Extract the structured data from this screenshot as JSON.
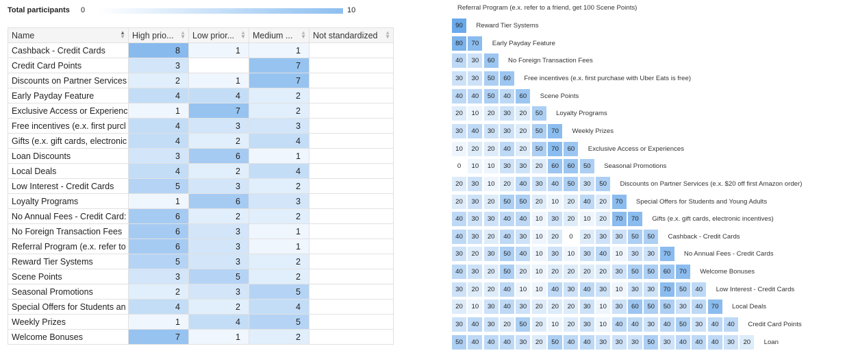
{
  "legend": {
    "title": "Total participants",
    "min": "0",
    "max": "10"
  },
  "table": {
    "headers": [
      "Name",
      "High prio...",
      "Low prior...",
      "Medium ...",
      "Not standardized"
    ],
    "rows": [
      {
        "name": "Cashback - Credit Cards",
        "high": "8",
        "low": "1",
        "medium": "1",
        "not_std": ""
      },
      {
        "name": "Credit Card Points",
        "high": "3",
        "low": "",
        "medium": "7",
        "not_std": ""
      },
      {
        "name": "Discounts on Partner Services",
        "high": "2",
        "low": "1",
        "medium": "7",
        "not_std": ""
      },
      {
        "name": "Early Payday Feature",
        "high": "4",
        "low": "4",
        "medium": "2",
        "not_std": ""
      },
      {
        "name": "Exclusive Access or Experienc",
        "high": "1",
        "low": "7",
        "medium": "2",
        "not_std": ""
      },
      {
        "name": "Free incentives (e.x. first purcl",
        "high": "4",
        "low": "3",
        "medium": "3",
        "not_std": ""
      },
      {
        "name": "Gifts (e.x. gift cards, electronic",
        "high": "4",
        "low": "2",
        "medium": "4",
        "not_std": ""
      },
      {
        "name": "Loan Discounts",
        "high": "3",
        "low": "6",
        "medium": "1",
        "not_std": ""
      },
      {
        "name": "Local Deals",
        "high": "4",
        "low": "2",
        "medium": "4",
        "not_std": ""
      },
      {
        "name": "Low Interest - Credit Cards",
        "high": "5",
        "low": "3",
        "medium": "2",
        "not_std": ""
      },
      {
        "name": "Loyalty Programs",
        "high": "1",
        "low": "6",
        "medium": "3",
        "not_std": ""
      },
      {
        "name": "No Annual Fees - Credit Card:",
        "high": "6",
        "low": "2",
        "medium": "2",
        "not_std": ""
      },
      {
        "name": "No Foreign Transaction Fees",
        "high": "6",
        "low": "3",
        "medium": "1",
        "not_std": ""
      },
      {
        "name": "Referral Program (e.x. refer to",
        "high": "6",
        "low": "3",
        "medium": "1",
        "not_std": ""
      },
      {
        "name": "Reward Tier Systems",
        "high": "5",
        "low": "3",
        "medium": "2",
        "not_std": ""
      },
      {
        "name": "Scene Points",
        "high": "3",
        "low": "5",
        "medium": "2",
        "not_std": ""
      },
      {
        "name": "Seasonal Promotions",
        "high": "2",
        "low": "3",
        "medium": "5",
        "not_std": ""
      },
      {
        "name": "Special Offers for Students an",
        "high": "4",
        "low": "2",
        "medium": "4",
        "not_std": ""
      },
      {
        "name": "Weekly Prizes",
        "high": "1",
        "low": "4",
        "medium": "5",
        "not_std": ""
      },
      {
        "name": "Welcome Bonuses",
        "high": "7",
        "low": "1",
        "medium": "2",
        "not_std": ""
      }
    ]
  },
  "similarity": {
    "top_label": "Referral Program (e.x. refer to a friend, get 100 Scene Points)",
    "rows": [
      {
        "label": "Reward Tier Systems",
        "values": [
          90
        ]
      },
      {
        "label": "Early Payday Feature",
        "values": [
          80,
          70
        ]
      },
      {
        "label": "No Foreign Transaction Fees",
        "values": [
          40,
          30,
          60
        ]
      },
      {
        "label": "Free incentives (e.x. first purchase with Uber Eats is free)",
        "values": [
          30,
          30,
          50,
          60
        ]
      },
      {
        "label": "Scene Points",
        "values": [
          40,
          40,
          50,
          40,
          60
        ]
      },
      {
        "label": "Loyalty Programs",
        "values": [
          20,
          10,
          20,
          30,
          20,
          50
        ]
      },
      {
        "label": "Weekly Prizes",
        "values": [
          30,
          40,
          30,
          30,
          20,
          50,
          70
        ]
      },
      {
        "label": "Exclusive Access or Experiences",
        "values": [
          10,
          20,
          20,
          40,
          20,
          50,
          70,
          60
        ]
      },
      {
        "label": "Seasonal Promotions",
        "values": [
          0,
          10,
          10,
          30,
          30,
          20,
          60,
          60,
          50
        ]
      },
      {
        "label": "Discounts on Partner Services (e.x. $20 off first Amazon order)",
        "values": [
          20,
          30,
          10,
          20,
          40,
          30,
          40,
          50,
          30,
          50
        ]
      },
      {
        "label": "Special Offers for Students and Young Adults",
        "values": [
          20,
          30,
          20,
          50,
          50,
          20,
          10,
          20,
          40,
          20,
          70
        ]
      },
      {
        "label": "Gifts (e.x. gift cards, electronic incentives)",
        "values": [
          40,
          30,
          30,
          40,
          40,
          10,
          30,
          20,
          10,
          20,
          70,
          70
        ]
      },
      {
        "label": "Cashback - Credit Cards",
        "values": [
          40,
          30,
          20,
          40,
          30,
          10,
          20,
          0,
          20,
          30,
          30,
          50,
          50
        ]
      },
      {
        "label": "No Annual Fees - Credit Cards",
        "values": [
          30,
          20,
          30,
          50,
          40,
          10,
          30,
          10,
          30,
          40,
          10,
          30,
          30,
          70
        ]
      },
      {
        "label": "Welcome Bonuses",
        "values": [
          40,
          30,
          20,
          50,
          20,
          10,
          20,
          20,
          20,
          20,
          30,
          50,
          50,
          60,
          70
        ]
      },
      {
        "label": "Low Interest - Credit Cards",
        "values": [
          30,
          20,
          20,
          40,
          10,
          10,
          40,
          30,
          40,
          30,
          10,
          30,
          30,
          70,
          50,
          40
        ]
      },
      {
        "label": "Local Deals",
        "values": [
          20,
          10,
          30,
          40,
          30,
          20,
          20,
          20,
          30,
          10,
          30,
          60,
          50,
          50,
          30,
          40,
          70
        ]
      },
      {
        "label": "Credit Card Points",
        "values": [
          30,
          40,
          30,
          20,
          50,
          20,
          10,
          20,
          30,
          10,
          40,
          40,
          30,
          40,
          50,
          30,
          40,
          40
        ]
      },
      {
        "label": "Loan",
        "values": [
          50,
          40,
          40,
          40,
          30,
          20,
          50,
          40,
          40,
          30,
          30,
          30,
          50,
          30,
          40,
          40,
          40,
          30,
          20
        ]
      }
    ]
  },
  "colors": {
    "scale_low": "#ffffff",
    "scale_high": "#6aa9ea",
    "border": "#e1e1e1",
    "header_bg": "#f5f5f5"
  }
}
